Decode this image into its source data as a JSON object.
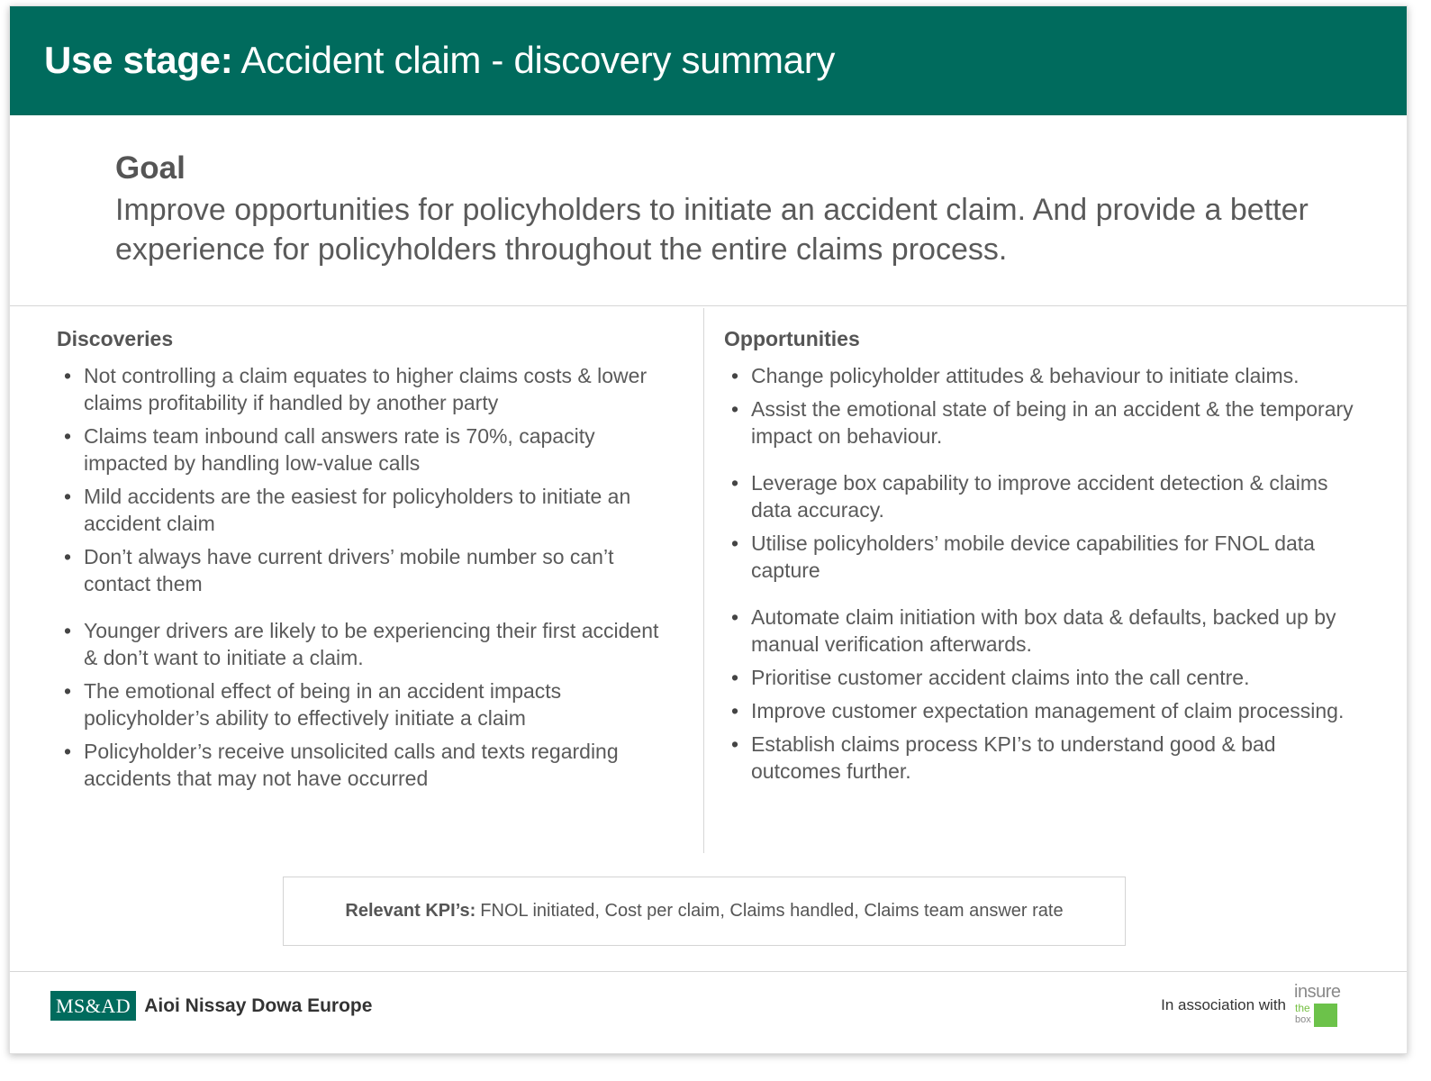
{
  "header": {
    "title_bold": "Use stage:",
    "title_rest": "Accident claim - discovery summary"
  },
  "goal": {
    "title": "Goal",
    "text": "Improve opportunities for policyholders to initiate an accident claim. And provide a better experience for policyholders throughout the entire claims process."
  },
  "discoveries": {
    "heading": "Discoveries",
    "items": [
      "Not controlling a claim equates to higher claims costs & lower claims profitability if handled by another party",
      "Claims team inbound call answers rate is 70%, capacity impacted by handling low-value calls",
      "Mild accidents are the easiest for policyholders to initiate an accident claim",
      "Don’t always have current drivers’ mobile number so can’t contact them",
      "Younger drivers are likely to be experiencing their first accident & don’t want to initiate a claim.",
      "The emotional effect of being in an accident impacts policyholder’s ability to effectively initiate a claim",
      "Policyholder’s receive unsolicited calls and texts regarding accidents that may not have occurred"
    ]
  },
  "opportunities": {
    "heading": "Opportunities",
    "items": [
      "Change policyholder attitudes & behaviour to initiate claims.",
      "Assist the emotional state of being in an accident & the temporary impact on behaviour.",
      "Leverage box capability to improve accident detection & claims data accuracy.",
      "Utilise policyholders’ mobile device capabilities for FNOL data capture",
      "Automate claim initiation with box data & defaults, backed up by manual verification afterwards.",
      "Prioritise customer accident claims into the call centre.",
      "Improve customer expectation management of claim processing.",
      "Establish claims process KPI’s to understand good & bad outcomes further."
    ]
  },
  "kpi": {
    "label": "Relevant KPI’s:",
    "text": "FNOL initiated, Cost per claim, Claims handled, Claims team answer rate"
  },
  "footer": {
    "logo_box": "MS&AD",
    "logo_name": "Aioi Nissay Dowa Europe",
    "association": "In association with",
    "partner_word": "insure",
    "partner_the": "the",
    "partner_box": "box"
  },
  "colors": {
    "brand_green": "#006b5d",
    "partner_green": "#6cc24a"
  }
}
